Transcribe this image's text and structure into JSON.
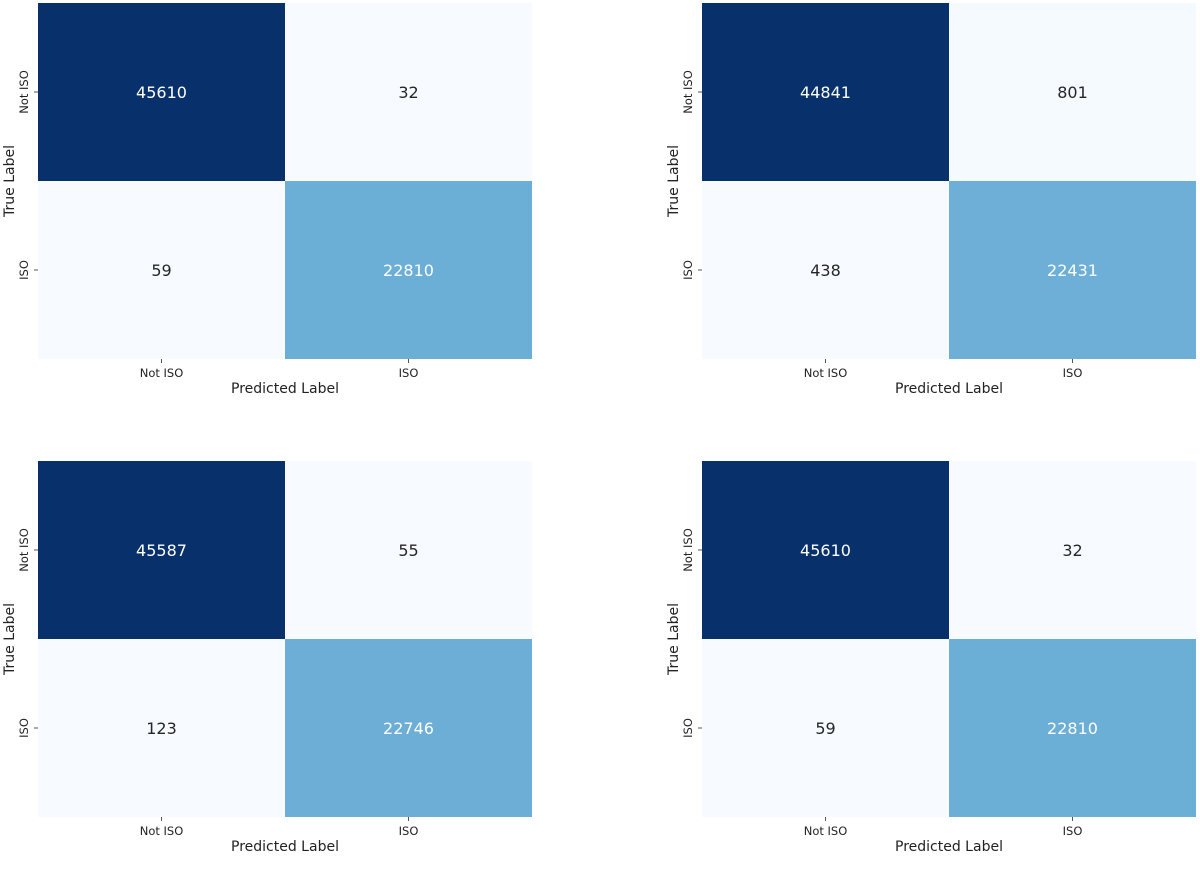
{
  "chart_data": [
    {
      "type": "heatmap",
      "xlabel": "Predicted Label",
      "ylabel": "True Label",
      "x_categories": [
        "Not ISO",
        "ISO"
      ],
      "y_categories": [
        "Not ISO",
        "ISO"
      ],
      "values": [
        [
          45610,
          32
        ],
        [
          59,
          22810
        ]
      ],
      "colormap": "Blues",
      "colorbar": false
    },
    {
      "type": "heatmap",
      "xlabel": "Predicted Label",
      "ylabel": "True Label",
      "x_categories": [
        "Not ISO",
        "ISO"
      ],
      "y_categories": [
        "Not ISO",
        "ISO"
      ],
      "values": [
        [
          44841,
          801
        ],
        [
          438,
          22431
        ]
      ],
      "colormap": "Blues",
      "colorbar": false
    },
    {
      "type": "heatmap",
      "xlabel": "Predicted Label",
      "ylabel": "True Label",
      "x_categories": [
        "Not ISO",
        "ISO"
      ],
      "y_categories": [
        "Not ISO",
        "ISO"
      ],
      "values": [
        [
          45587,
          55
        ],
        [
          123,
          22746
        ]
      ],
      "colormap": "Blues",
      "colorbar": false
    },
    {
      "type": "heatmap",
      "xlabel": "Predicted Label",
      "ylabel": "True Label",
      "x_categories": [
        "Not ISO",
        "ISO"
      ],
      "y_categories": [
        "Not ISO",
        "ISO"
      ],
      "values": [
        [
          45610,
          32
        ],
        [
          59,
          22810
        ]
      ],
      "colormap": "Blues",
      "colorbar": false
    }
  ]
}
